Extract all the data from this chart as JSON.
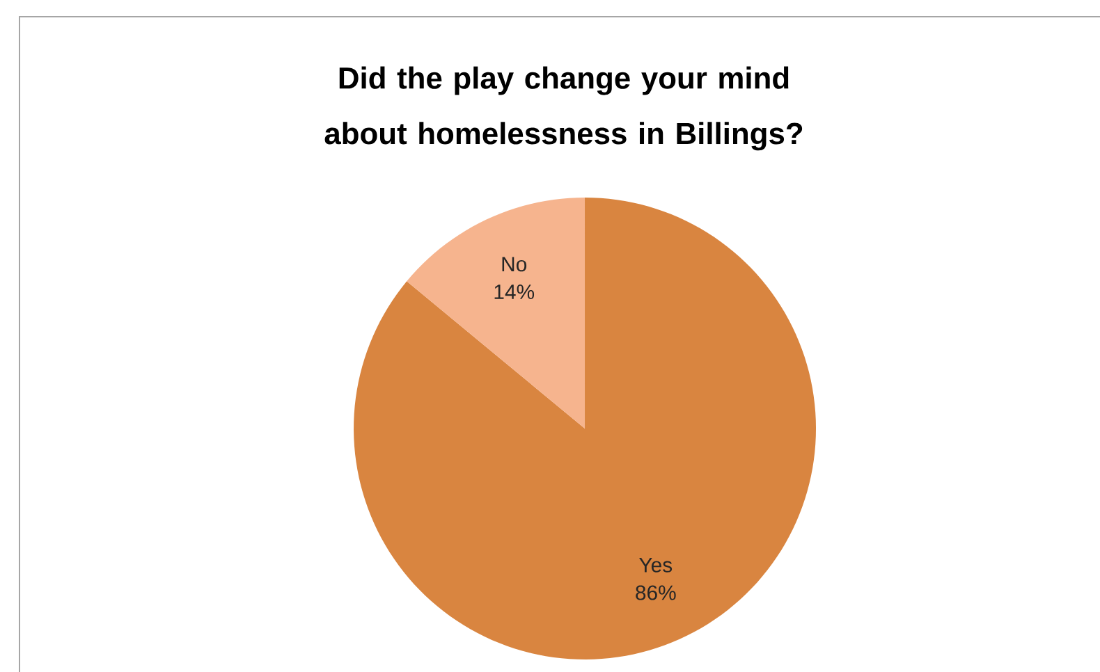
{
  "chart_data": {
    "type": "pie",
    "title": "Did the play change your mind about homelessness in Billings?",
    "categories": [
      "Yes",
      "No"
    ],
    "values": [
      86,
      14
    ],
    "colors": [
      "#d98540",
      "#f6b48e"
    ],
    "value_labels": [
      "86%",
      "14%"
    ]
  }
}
